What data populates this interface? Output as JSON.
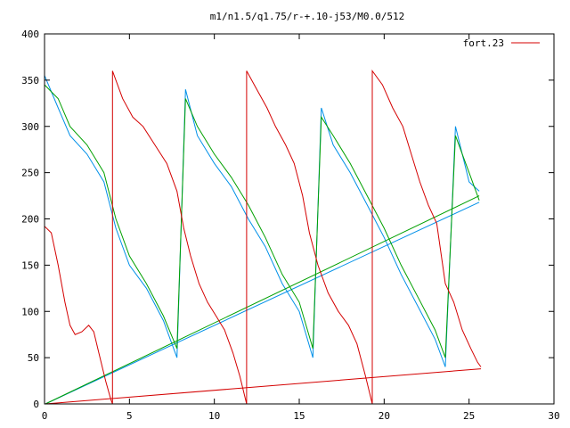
{
  "chart_data": {
    "type": "line",
    "title": "m1/n1.5/q1.75/r-+.10-j53/M0.0/512",
    "xlabel": "",
    "ylabel": "",
    "xlim": [
      0,
      30
    ],
    "ylim": [
      0,
      400
    ],
    "x_ticks": [
      0,
      5,
      10,
      15,
      20,
      25,
      30
    ],
    "y_ticks": [
      0,
      50,
      100,
      150,
      200,
      250,
      300,
      350,
      400
    ],
    "grid": false,
    "legend_position": "top-right",
    "series": [
      {
        "name": "fort.23",
        "color": "#d40000",
        "points": [
          [
            0,
            192
          ],
          [
            0.4,
            185
          ],
          [
            0.8,
            150
          ],
          [
            1.2,
            110
          ],
          [
            1.5,
            85
          ],
          [
            1.8,
            75
          ],
          [
            2.2,
            78
          ],
          [
            2.6,
            85
          ],
          [
            2.9,
            78
          ],
          [
            3.2,
            55
          ],
          [
            3.6,
            25
          ],
          [
            3.9,
            5
          ],
          [
            4.0,
            0
          ],
          [
            4.0,
            360
          ],
          [
            4.6,
            330
          ],
          [
            5.2,
            310
          ],
          [
            5.8,
            300
          ],
          [
            6.5,
            280
          ],
          [
            7.2,
            260
          ],
          [
            7.8,
            230
          ],
          [
            8.2,
            190
          ],
          [
            8.6,
            160
          ],
          [
            9.1,
            130
          ],
          [
            9.6,
            110
          ],
          [
            10.1,
            95
          ],
          [
            10.6,
            80
          ],
          [
            11.1,
            55
          ],
          [
            11.5,
            30
          ],
          [
            11.9,
            0
          ],
          [
            11.9,
            360
          ],
          [
            12.5,
            340
          ],
          [
            13.1,
            320
          ],
          [
            13.6,
            300
          ],
          [
            14.2,
            280
          ],
          [
            14.7,
            260
          ],
          [
            15.2,
            225
          ],
          [
            15.6,
            185
          ],
          [
            16.1,
            150
          ],
          [
            16.7,
            120
          ],
          [
            17.3,
            100
          ],
          [
            17.9,
            85
          ],
          [
            18.4,
            65
          ],
          [
            18.9,
            30
          ],
          [
            19.3,
            0
          ],
          [
            19.3,
            360
          ],
          [
            19.9,
            345
          ],
          [
            20.5,
            320
          ],
          [
            21.1,
            300
          ],
          [
            21.6,
            270
          ],
          [
            22.1,
            240
          ],
          [
            22.6,
            215
          ],
          [
            23.1,
            195
          ],
          [
            23.6,
            130
          ],
          [
            24.1,
            110
          ],
          [
            24.6,
            80
          ],
          [
            25.1,
            60
          ],
          [
            25.5,
            45
          ],
          [
            25.7,
            40
          ],
          [
            0.05,
            0
          ],
          [
            25.7,
            38
          ]
        ]
      },
      {
        "name": "",
        "color": "#00a000",
        "points": [
          [
            0,
            345
          ],
          [
            0.8,
            330
          ],
          [
            1.5,
            300
          ],
          [
            2.5,
            280
          ],
          [
            3.5,
            250
          ],
          [
            4.2,
            200
          ],
          [
            5,
            160
          ],
          [
            6,
            130
          ],
          [
            7,
            95
          ],
          [
            7.8,
            60
          ],
          [
            8.3,
            330
          ],
          [
            9,
            300
          ],
          [
            10,
            270
          ],
          [
            11,
            245
          ],
          [
            12,
            215
          ],
          [
            13,
            180
          ],
          [
            14,
            140
          ],
          [
            15,
            110
          ],
          [
            15.8,
            60
          ],
          [
            16.3,
            310
          ],
          [
            17,
            290
          ],
          [
            18,
            260
          ],
          [
            19,
            225
          ],
          [
            20,
            190
          ],
          [
            21,
            150
          ],
          [
            22,
            115
          ],
          [
            23,
            80
          ],
          [
            23.6,
            50
          ],
          [
            24.2,
            290
          ],
          [
            25,
            250
          ],
          [
            25.6,
            220
          ],
          [
            0.05,
            0
          ],
          [
            25.6,
            225
          ]
        ]
      },
      {
        "name": "",
        "color": "#0090e8",
        "points": [
          [
            0,
            355
          ],
          [
            0.8,
            320
          ],
          [
            1.5,
            290
          ],
          [
            2.5,
            270
          ],
          [
            3.5,
            240
          ],
          [
            4.2,
            190
          ],
          [
            5,
            150
          ],
          [
            6,
            125
          ],
          [
            7,
            90
          ],
          [
            7.8,
            50
          ],
          [
            8.3,
            340
          ],
          [
            9,
            290
          ],
          [
            10,
            260
          ],
          [
            11,
            235
          ],
          [
            12,
            200
          ],
          [
            13,
            170
          ],
          [
            14,
            130
          ],
          [
            15,
            100
          ],
          [
            15.8,
            50
          ],
          [
            16.3,
            320
          ],
          [
            17,
            280
          ],
          [
            18,
            250
          ],
          [
            19,
            215
          ],
          [
            20,
            180
          ],
          [
            21,
            140
          ],
          [
            22,
            105
          ],
          [
            23,
            70
          ],
          [
            23.6,
            40
          ],
          [
            24.2,
            300
          ],
          [
            25,
            240
          ],
          [
            25.6,
            230
          ],
          [
            0.05,
            0
          ],
          [
            25.6,
            218
          ]
        ]
      }
    ]
  }
}
